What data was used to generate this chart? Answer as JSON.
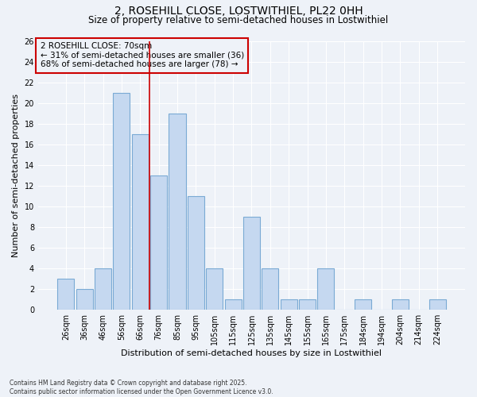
{
  "title": "2, ROSEHILL CLOSE, LOSTWITHIEL, PL22 0HH",
  "subtitle": "Size of property relative to semi-detached houses in Lostwithiel",
  "xlabel": "Distribution of semi-detached houses by size in Lostwithiel",
  "ylabel": "Number of semi-detached properties",
  "categories": [
    "26sqm",
    "36sqm",
    "46sqm",
    "56sqm",
    "66sqm",
    "76sqm",
    "85sqm",
    "95sqm",
    "105sqm",
    "115sqm",
    "125sqm",
    "135sqm",
    "145sqm",
    "155sqm",
    "165sqm",
    "175sqm",
    "184sqm",
    "194sqm",
    "204sqm",
    "214sqm",
    "224sqm"
  ],
  "values": [
    3,
    2,
    4,
    21,
    17,
    13,
    19,
    11,
    4,
    1,
    9,
    4,
    1,
    1,
    4,
    0,
    1,
    0,
    1,
    0,
    1
  ],
  "bar_color": "#c5d8f0",
  "bar_edge_color": "#7aaad4",
  "vline_x": 4.5,
  "vline_color": "#cc0000",
  "annotation_title": "2 ROSEHILL CLOSE: 70sqm",
  "annotation_line1": "← 31% of semi-detached houses are smaller (36)",
  "annotation_line2": "68% of semi-detached houses are larger (78) →",
  "annotation_box_color": "#cc0000",
  "ylim": [
    0,
    26
  ],
  "yticks": [
    0,
    2,
    4,
    6,
    8,
    10,
    12,
    14,
    16,
    18,
    20,
    22,
    24,
    26
  ],
  "footnote": "Contains HM Land Registry data © Crown copyright and database right 2025.\nContains public sector information licensed under the Open Government Licence v3.0.",
  "bg_color": "#eef2f8",
  "grid_color": "#ffffff",
  "title_fontsize": 10,
  "subtitle_fontsize": 8.5,
  "xlabel_fontsize": 8,
  "ylabel_fontsize": 8,
  "tick_fontsize": 7,
  "annot_fontsize": 7.5,
  "footnote_fontsize": 5.5
}
